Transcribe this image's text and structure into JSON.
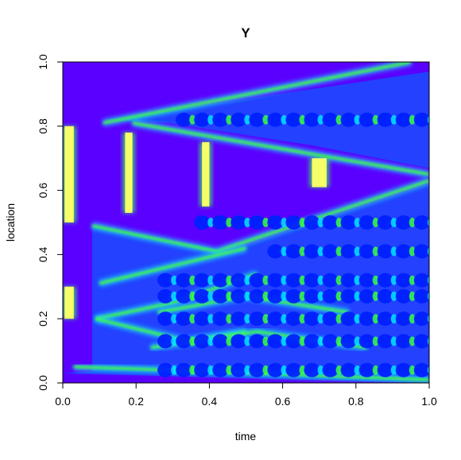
{
  "chart_data": {
    "type": "heatmap",
    "title": "Y",
    "xlabel": "time",
    "ylabel": "location",
    "xlim": [
      0.0,
      1.0
    ],
    "ylim": [
      0.0,
      1.0
    ],
    "x_ticks": [
      "0.0",
      "0.2",
      "0.4",
      "0.6",
      "0.8",
      "1.0"
    ],
    "y_ticks": [
      "0.0",
      "0.2",
      "0.4",
      "0.6",
      "0.8",
      "1.0"
    ],
    "grid": false,
    "legend": "none",
    "colors": {
      "background": "#5a00ff",
      "mid": "#1f4dff",
      "high_cyan": "#00e5ff",
      "high_green": "#39ff3a",
      "peak": "#ffff66"
    }
  }
}
